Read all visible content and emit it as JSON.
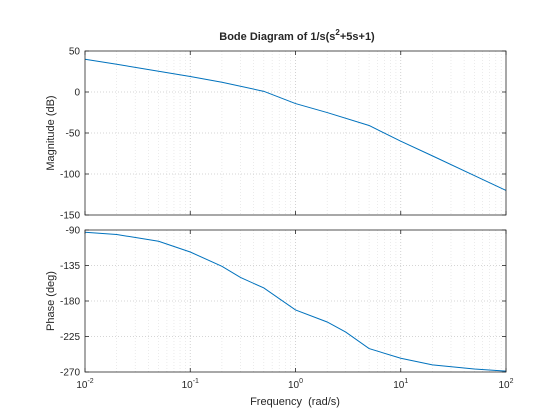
{
  "figure": {
    "title_main": "Bode Diagram of 1/s(s",
    "title_sup": "2",
    "title_tail": "+5s+1)"
  },
  "chart_data": [
    {
      "type": "line",
      "panel": "magnitude",
      "xlabel": "",
      "ylabel": "Magnitude (dB)",
      "xscale": "log",
      "xlim": [
        0.01,
        100
      ],
      "ylim": [
        -150,
        50
      ],
      "yticks": [
        50,
        0,
        -50,
        -100,
        -150
      ],
      "grid": true,
      "color": "#0072bd",
      "x": [
        0.01,
        0.02,
        0.05,
        0.1,
        0.2,
        0.5,
        1,
        2,
        5,
        10,
        20,
        50,
        100
      ],
      "y": [
        40.0,
        33.8,
        25.3,
        18.9,
        11.9,
        0.8,
        -14.1,
        -25.1,
        -40.8,
        -60.0,
        -77.9,
        -101.9,
        -120.0
      ]
    },
    {
      "type": "line",
      "panel": "phase",
      "xlabel": "Frequency  (rad/s)",
      "ylabel": "Phase (deg)",
      "xscale": "log",
      "xlim": [
        0.01,
        100
      ],
      "xticks": [
        0.01,
        0.1,
        1,
        10,
        100
      ],
      "xticklabels": [
        {
          "base": "10",
          "exp": "-2"
        },
        {
          "base": "10",
          "exp": "-1"
        },
        {
          "base": "10",
          "exp": "0"
        },
        {
          "base": "10",
          "exp": "1"
        },
        {
          "base": "10",
          "exp": "2"
        }
      ],
      "ylim": [
        -270,
        -90
      ],
      "yticks": [
        -90,
        -135,
        -180,
        -225,
        -270
      ],
      "grid": true,
      "color": "#0072bd",
      "x": [
        0.01,
        0.02,
        0.05,
        0.1,
        0.2,
        0.3,
        0.5,
        1,
        2,
        3,
        5,
        10,
        20,
        50,
        100
      ],
      "y": [
        -92.9,
        -95.7,
        -104.3,
        -117.9,
        -136.0,
        -150.1,
        -163.5,
        -191.3,
        -206.6,
        -219.4,
        -240.3,
        -252.6,
        -260.9,
        -266.2,
        -268.9
      ]
    }
  ]
}
